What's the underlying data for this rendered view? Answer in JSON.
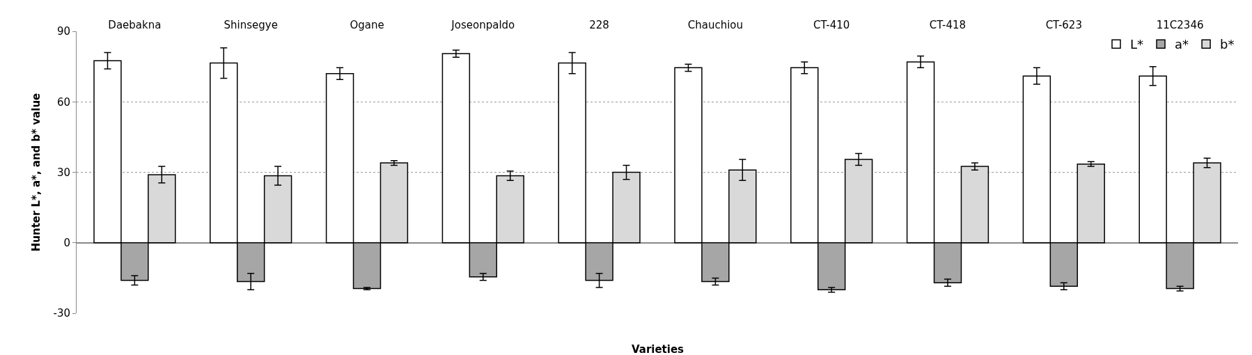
{
  "chart_data": {
    "type": "bar",
    "categories": [
      "Daebakna",
      "Shinsegye",
      "Ogane",
      "Joseonpaldo",
      "228",
      "Chauchiou",
      "CT-410",
      "CT-418",
      "CT-623",
      "11C2346"
    ],
    "series": [
      {
        "name": "L*",
        "color": "#ffffff",
        "values": [
          77.5,
          76.5,
          72,
          80.5,
          76.5,
          74.5,
          74.5,
          77,
          71,
          71
        ],
        "errors": [
          3.5,
          6.5,
          2.5,
          1.5,
          4.5,
          1.5,
          2.5,
          2.5,
          3.5,
          4
        ]
      },
      {
        "name": "a*",
        "color": "#a6a6a6",
        "values": [
          -16,
          -16.5,
          -19.5,
          -14.5,
          -16,
          -16.5,
          -20,
          -17,
          -18.5,
          -19.5
        ],
        "errors": [
          2,
          3.5,
          0.5,
          1.5,
          3,
          1.5,
          1,
          1.5,
          1.5,
          1
        ]
      },
      {
        "name": "b*",
        "color": "#d9d9d9",
        "values": [
          29,
          28.5,
          34,
          28.5,
          30,
          31,
          35.5,
          32.5,
          33.5,
          34
        ],
        "errors": [
          3.5,
          4,
          1,
          2,
          3,
          4.5,
          2.5,
          1.5,
          1,
          2
        ]
      }
    ],
    "xlabel": "Varieties",
    "ylabel": "Hunter L*, a*, and b* value",
    "ylim": [
      -30,
      90
    ],
    "yticks": [
      -30,
      0,
      30,
      60,
      90
    ],
    "grid": "y",
    "legend": "top right"
  }
}
